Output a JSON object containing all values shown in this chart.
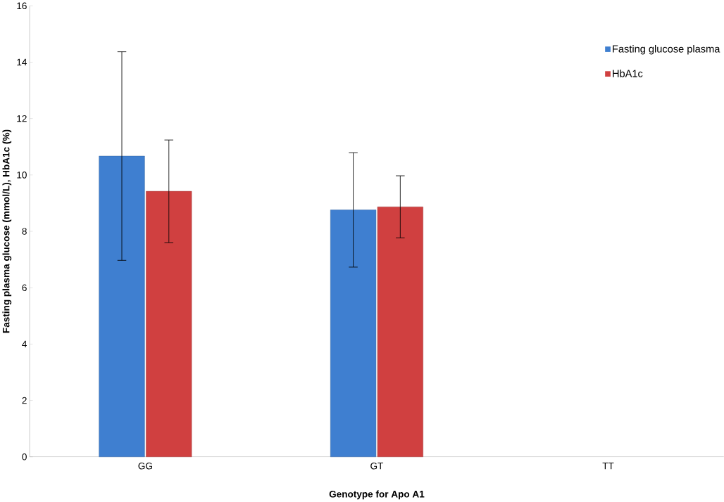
{
  "chart_data": {
    "type": "bar",
    "xlabel": "Genotype for Apo A1",
    "ylabel": "Fasting plasma glucose (mmol/L), HbA1c (%)",
    "categories": [
      "GG",
      "GT",
      "TT"
    ],
    "series": [
      {
        "name": "Fasting glucose plasma",
        "color": "#3f7fd0",
        "values": [
          10.67,
          8.76,
          null
        ],
        "errors": [
          3.7,
          2.03,
          null
        ]
      },
      {
        "name": "HbA1c",
        "color": "#d04040",
        "values": [
          9.42,
          8.87,
          null
        ],
        "errors": [
          1.82,
          1.1,
          null
        ]
      }
    ],
    "ylim": [
      0,
      16
    ],
    "yticks": [
      0,
      2,
      4,
      6,
      8,
      10,
      12,
      14,
      16
    ],
    "grid": false,
    "legend": "top right"
  }
}
